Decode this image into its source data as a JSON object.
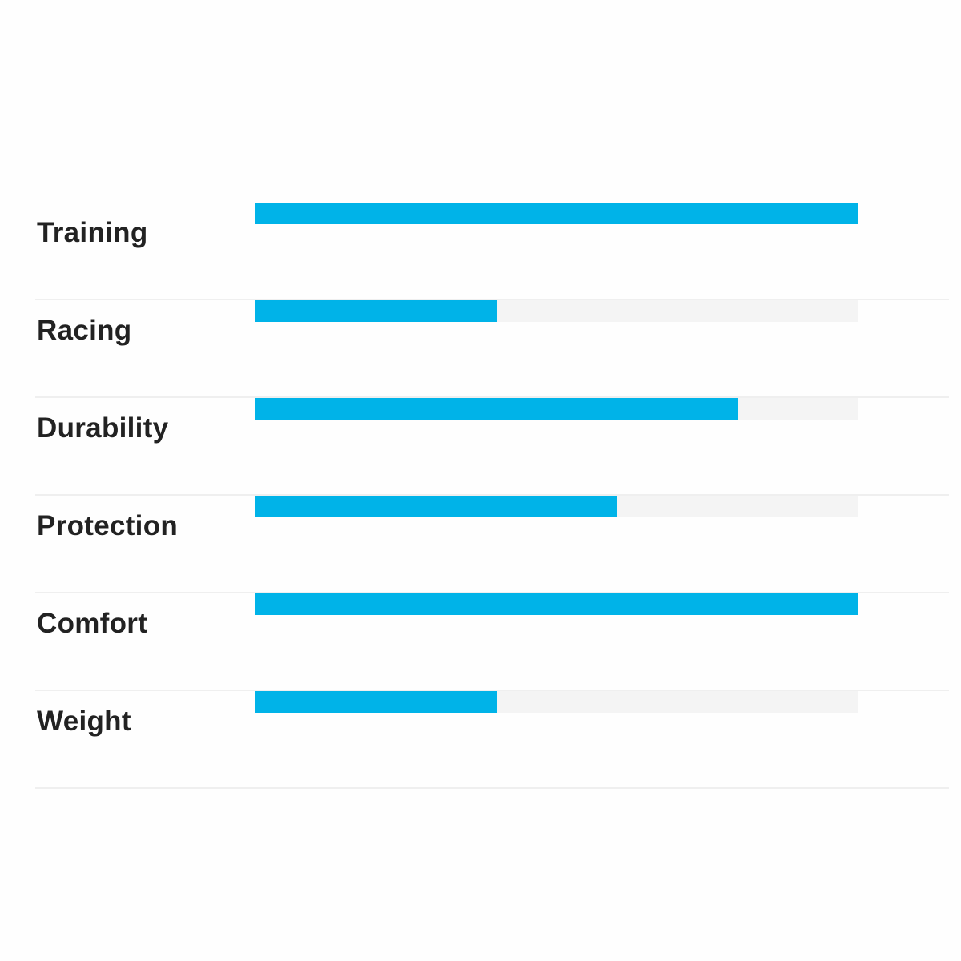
{
  "chart_data": {
    "type": "bar",
    "orientation": "horizontal",
    "categories": [
      "Training",
      "Racing",
      "Durability",
      "Protection",
      "Comfort",
      "Weight"
    ],
    "values": [
      5,
      2,
      4,
      3,
      5,
      2
    ],
    "xlim": [
      0,
      5
    ],
    "grid": false,
    "colors": {
      "fill": "#00b3e8",
      "track": "#f4f4f4"
    }
  }
}
